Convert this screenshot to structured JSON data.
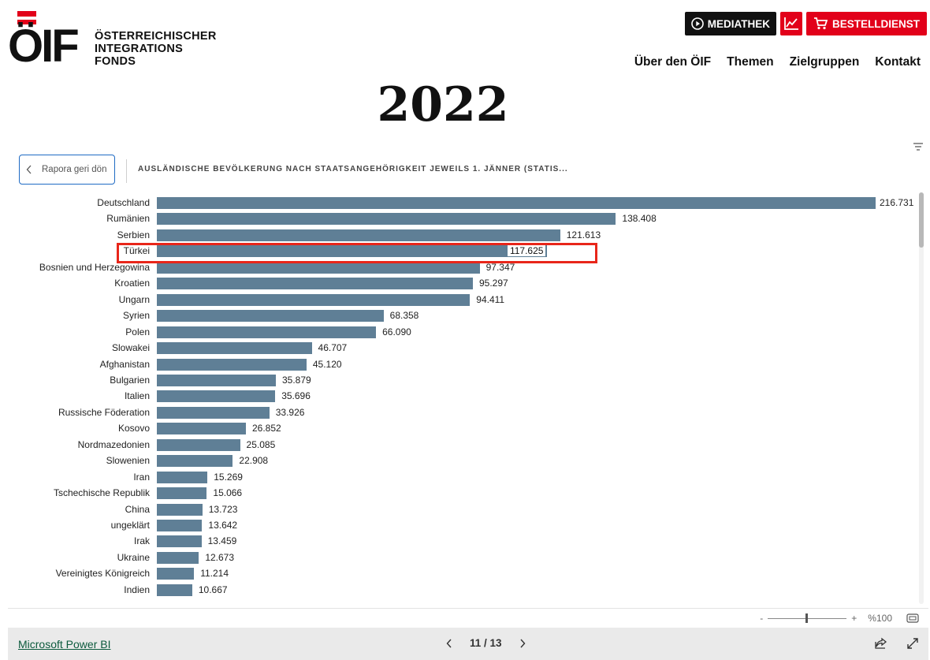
{
  "header": {
    "logo_mark": "ÖIF",
    "logo_lines": [
      "ÖSTERREICHISCHER",
      "INTEGRATIONS",
      "FONDS"
    ],
    "buttons": {
      "mediathek": "MEDIATHEK",
      "bestelldienst": "BESTELLDIENST"
    },
    "nav": [
      "Über den ÖIF",
      "Themen",
      "Zielgruppen",
      "Kontakt"
    ],
    "icons": {
      "mediathek": "play-circle-icon",
      "stats": "line-chart-icon",
      "bestelldienst": "shopping-cart-icon"
    },
    "accent_color": "#e2001a"
  },
  "page_heading": "2022",
  "report": {
    "back_button": "Rapora geri dön",
    "visual_title": "AUSLÄNDISCHE BEVÖLKERUNG NACH STAATSANGEHÖRIGKEIT JEWEILS 1. JÄNNER (STATIS...",
    "highlighted_category": "Türkei",
    "highlight_color": "#e8261a",
    "zoom": {
      "minus": "-",
      "plus": "+",
      "label": "%100",
      "level": 0.5
    }
  },
  "chart_data": {
    "type": "bar",
    "orientation": "horizontal",
    "bar_color": "#5f7f96",
    "categories": [
      "Deutschland",
      "Rumänien",
      "Serbien",
      "Türkei",
      "Bosnien und Herzegowina",
      "Kroatien",
      "Ungarn",
      "Syrien",
      "Polen",
      "Slowakei",
      "Afghanistan",
      "Bulgarien",
      "Italien",
      "Russische Föderation",
      "Kosovo",
      "Nordmazedonien",
      "Slowenien",
      "Iran",
      "Tschechische Republik",
      "China",
      "ungeklärt",
      "Irak",
      "Ukraine",
      "Vereinigtes Königreich",
      "Indien"
    ],
    "values": [
      216731,
      138408,
      121613,
      117625,
      97347,
      95297,
      94411,
      68358,
      66090,
      46707,
      45120,
      35879,
      35696,
      33926,
      26852,
      25085,
      22908,
      15269,
      15066,
      13723,
      13642,
      13459,
      12673,
      11214,
      10667
    ],
    "value_labels": [
      "216.731",
      "138.408",
      "121.613",
      "117.625",
      "97.347",
      "95.297",
      "94.411",
      "68.358",
      "66.090",
      "46.707",
      "45.120",
      "35.879",
      "35.696",
      "33.926",
      "26.852",
      "25.085",
      "22.908",
      "15.269",
      "15.066",
      "13.723",
      "13.642",
      "13.459",
      "12.673",
      "11.214",
      "10.667"
    ],
    "xlim": [
      0,
      216731
    ],
    "grid": false,
    "legend": "none"
  },
  "footer": {
    "powerbi_link": "Microsoft Power BI",
    "page_indicator": "11 / 13",
    "icons": {
      "prev": "chevron-left-icon",
      "next": "chevron-right-icon",
      "share": "share-icon",
      "fullscreen": "expand-icon"
    }
  }
}
